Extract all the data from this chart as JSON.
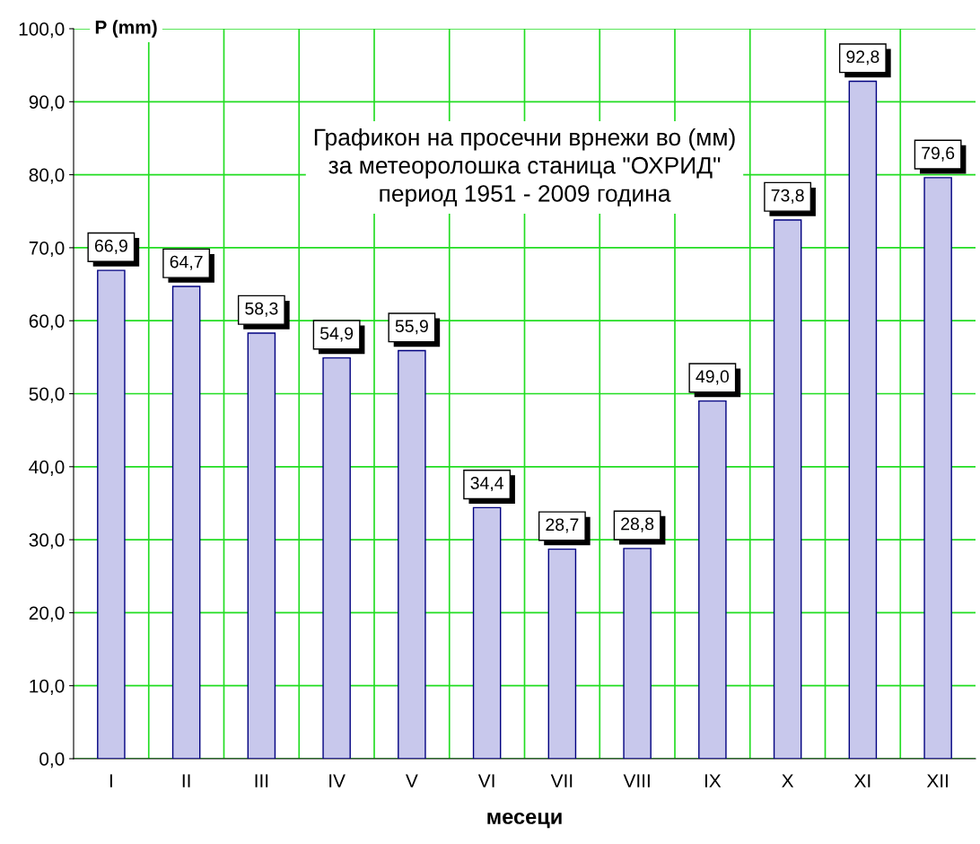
{
  "chart_data": {
    "type": "bar",
    "title": "Графикон на просечни врнежи во (мм)\nза метеоролошка станица \"ОХРИД\"\nпериод 1951 - 2009 година",
    "xlabel": "месеци",
    "ylabel": "P (mm)",
    "categories": [
      "I",
      "II",
      "III",
      "IV",
      "V",
      "VI",
      "VII",
      "VIII",
      "IX",
      "X",
      "XI",
      "XII"
    ],
    "values": [
      66.9,
      64.7,
      58.3,
      54.9,
      55.9,
      34.4,
      28.7,
      28.8,
      49.0,
      73.8,
      92.8,
      79.6
    ],
    "value_labels": [
      "66,9",
      "64,7",
      "58,3",
      "54,9",
      "55,9",
      "34,4",
      "28,7",
      "28,8",
      "49,0",
      "73,8",
      "92,8",
      "79,6"
    ],
    "color": "#c8c8ec",
    "ylim": [
      0,
      100
    ],
    "yticks": [
      {
        "value": 0,
        "label": "0,0"
      },
      {
        "value": 10,
        "label": "10,0"
      },
      {
        "value": 20,
        "label": "20,0"
      },
      {
        "value": 30,
        "label": "30,0"
      },
      {
        "value": 40,
        "label": "40,0"
      },
      {
        "value": 50,
        "label": "50,0"
      },
      {
        "value": 60,
        "label": "60,0"
      },
      {
        "value": 70,
        "label": "70,0"
      },
      {
        "value": 80,
        "label": "80,0"
      },
      {
        "value": 90,
        "label": "90,0"
      },
      {
        "value": 100,
        "label": "100,0"
      }
    ],
    "grid": true,
    "legend": false
  }
}
